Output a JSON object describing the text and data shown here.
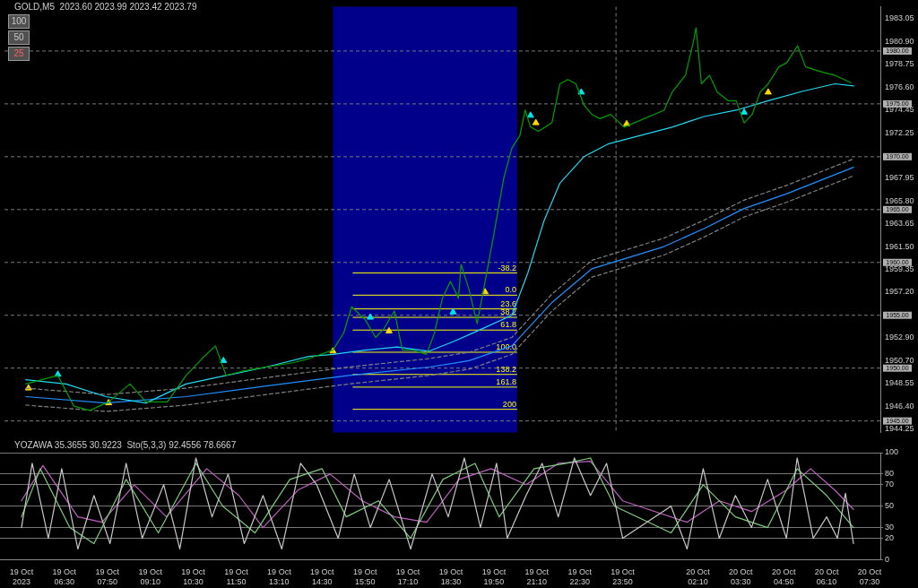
{
  "chart_data": [
    {
      "type": "line",
      "title": "GOLD,M5  2023.60 2023.99 2023.42 2023.79",
      "xlim": [
        "2023-10-19T04:30",
        "2023-10-20T07:50"
      ],
      "ylim": [
        1943.9,
        1984.2
      ],
      "annotations": [
        "100",
        "50",
        "25",
        {
          "text": "-38.2",
          "x": "2023-10-19T20:30",
          "y": 1959.0
        },
        {
          "text": "0.0",
          "x": "2023-10-19T20:30",
          "y": 1956.9
        },
        {
          "text": "23.6",
          "x": "2023-10-19T20:30",
          "y": 1955.6
        },
        {
          "text": "38.2",
          "x": "2023-10-19T20:30",
          "y": 1954.8
        },
        {
          "text": "61.8",
          "x": "2023-10-19T20:30",
          "y": 1953.6
        },
        {
          "text": "100.0",
          "x": "2023-10-19T20:30",
          "y": 1951.5
        },
        {
          "text": "138.2",
          "x": "2023-10-19T20:30",
          "y": 1949.4
        },
        {
          "text": "161.8",
          "x": "2023-10-19T20:30",
          "y": 1948.2
        },
        {
          "text": "200",
          "x": "2023-10-19T20:30",
          "y": 1946.1
        }
      ],
      "yticks": [
        {
          "value": 1944.25,
          "label": "1944.25"
        },
        {
          "value": 1946.4,
          "label": "1946.40"
        },
        {
          "value": 1948.55,
          "label": "1948.55"
        },
        {
          "value": 1950.7,
          "label": "1950.70"
        },
        {
          "value": 1952.9,
          "label": "1952.90"
        },
        {
          "value": 1957.2,
          "label": "1957.20"
        },
        {
          "value": 1959.35,
          "label": "1959.35"
        },
        {
          "value": 1961.5,
          "label": "1961.50"
        },
        {
          "value": 1963.65,
          "label": "1963.65"
        },
        {
          "value": 1965.8,
          "label": "1965.80"
        },
        {
          "value": 1967.95,
          "label": "1967.95"
        },
        {
          "value": 1972.25,
          "label": "1972.25"
        },
        {
          "value": 1974.45,
          "label": "1974.45"
        },
        {
          "value": 1976.6,
          "label": "1976.60"
        },
        {
          "value": 1978.75,
          "label": "1978.75"
        },
        {
          "value": 1980.9,
          "label": "1980.90"
        },
        {
          "value": 1983.05,
          "label": "1983.05"
        }
      ],
      "tick_labels": "y",
      "marker": "none",
      "line_style": "solid",
      "bands": [
        {
          "axis": "x",
          "from": "2023-10-19T14:45",
          "to": "2023-10-19T20:30",
          "color": "#00008b"
        }
      ],
      "ref_lines": [
        {
          "axis": "y",
          "value": 1945,
          "label": "1945.00",
          "line_style": "dashed"
        },
        {
          "axis": "y",
          "value": 1950,
          "label": "1950.00",
          "line_style": "dashed"
        },
        {
          "axis": "y",
          "value": 1955,
          "label": "1955.00",
          "line_style": "dashed"
        },
        {
          "axis": "y",
          "value": 1960,
          "label": "1960.00",
          "line_style": "dashed"
        },
        {
          "axis": "y",
          "value": 1965,
          "label": "1965.00",
          "line_style": "dashed"
        },
        {
          "axis": "y",
          "value": 1970,
          "label": "1970.00",
          "line_style": "dashed"
        },
        {
          "axis": "y",
          "value": 1975,
          "label": "1975.00",
          "line_style": "dashed"
        },
        {
          "axis": "y",
          "value": 1980,
          "label": "1980.00",
          "line_style": "dashed"
        },
        {
          "axis": "x",
          "value": "2023-10-19T23:35",
          "line_style": "dashed"
        },
        {
          "axis": "y",
          "value": 1959.0,
          "color": "#ffff00"
        },
        {
          "axis": "y",
          "value": 1956.9,
          "color": "#ffff00"
        },
        {
          "axis": "y",
          "value": 1955.6,
          "color": "#ffff00"
        },
        {
          "axis": "y",
          "value": 1954.8,
          "color": "#ffff00"
        },
        {
          "axis": "y",
          "value": 1953.6,
          "color": "#ffff00"
        },
        {
          "axis": "y",
          "value": 1951.5,
          "color": "#ffff00"
        },
        {
          "axis": "y",
          "value": 1949.4,
          "color": "#ffff00"
        },
        {
          "axis": "y",
          "value": 1948.2,
          "color": "#ffff00"
        },
        {
          "axis": "y",
          "value": 1946.1,
          "color": "#ffff00"
        }
      ],
      "series": [
        {
          "color": "#00a000",
          "x": [
            "2023-10-19T05:10",
            "2023-10-19T06:10",
            "2023-10-19T06:40",
            "2023-10-19T07:10",
            "2023-10-19T07:45",
            "2023-10-19T08:25",
            "2023-10-19T08:55",
            "2023-10-19T09:35",
            "2023-10-19T10:10",
            "2023-10-19T10:40",
            "2023-10-19T11:05",
            "2023-10-19T11:25",
            "2023-10-19T11:55",
            "2023-10-19T12:40",
            "2023-10-19T13:30",
            "2023-10-19T14:00",
            "2023-10-19T14:45",
            "2023-10-19T15:05",
            "2023-10-19T15:20",
            "2023-10-19T15:45",
            "2023-10-19T16:05",
            "2023-10-19T16:20",
            "2023-10-19T16:40",
            "2023-10-19T16:55",
            "2023-10-19T17:15",
            "2023-10-19T17:40",
            "2023-10-19T17:55",
            "2023-10-19T18:10",
            "2023-10-19T18:25",
            "2023-10-19T18:40",
            "2023-10-19T18:45",
            "2023-10-19T19:00",
            "2023-10-19T19:15",
            "2023-10-19T19:30",
            "2023-10-19T19:45",
            "2023-10-19T20:05",
            "2023-10-19T20:20",
            "2023-10-19T20:35",
            "2023-10-19T20:45",
            "2023-10-19T20:55",
            "2023-10-19T21:10",
            "2023-10-19T21:35",
            "2023-10-19T21:50",
            "2023-10-19T22:05",
            "2023-10-19T22:20",
            "2023-10-19T22:35",
            "2023-10-19T22:50",
            "2023-10-19T23:05",
            "2023-10-19T23:25",
            "2023-10-19T23:50",
            "2023-10-20T01:05",
            "2023-10-20T01:20",
            "2023-10-20T01:45",
            "2023-10-20T02:00",
            "2023-10-20T02:05",
            "2023-10-20T02:15",
            "2023-10-20T02:30",
            "2023-10-20T02:45",
            "2023-10-20T03:05",
            "2023-10-20T03:20",
            "2023-10-20T03:35",
            "2023-10-20T03:50",
            "2023-10-20T04:05",
            "2023-10-20T04:20",
            "2023-10-20T04:40",
            "2023-10-20T04:55",
            "2023-10-20T05:15",
            "2023-10-20T05:30",
            "2023-10-20T05:55",
            "2023-10-20T06:25",
            "2023-10-20T06:55"
          ],
          "values": [
            1948.5,
            1949.3,
            1946.4,
            1946.0,
            1946.8,
            1948.5,
            1946.8,
            1946.8,
            1949.3,
            1950.9,
            1952.1,
            1949.3,
            1949.7,
            1950.1,
            1950.5,
            1950.9,
            1951.7,
            1953.3,
            1955.8,
            1954.6,
            1952.9,
            1953.7,
            1955.4,
            1951.7,
            1951.7,
            1951.3,
            1953.3,
            1956.6,
            1958.2,
            1956.6,
            1959.8,
            1957.4,
            1954.2,
            1958.2,
            1962.3,
            1968.0,
            1970.8,
            1972.0,
            1974.4,
            1972.8,
            1972.4,
            1973.2,
            1976.9,
            1977.3,
            1976.9,
            1974.9,
            1974.0,
            1973.6,
            1974.0,
            1972.8,
            1974.4,
            1976.1,
            1977.7,
            1980.9,
            1982.2,
            1976.9,
            1977.7,
            1976.1,
            1975.3,
            1975.3,
            1973.2,
            1974.0,
            1976.1,
            1976.9,
            1978.5,
            1978.9,
            1980.5,
            1978.5,
            1978.1,
            1977.7,
            1977.0
          ]
        },
        {
          "color": "#20d8f0",
          "x": [
            "2023-10-19T05:10",
            "2023-10-19T06:25",
            "2023-10-19T07:40",
            "2023-10-19T08:55",
            "2023-10-19T10:10",
            "2023-10-19T11:25",
            "2023-10-19T12:40",
            "2023-10-19T14:00",
            "2023-10-19T14:45",
            "2023-10-19T15:45",
            "2023-10-19T16:45",
            "2023-10-19T17:45",
            "2023-10-19T18:30",
            "2023-10-19T19:15",
            "2023-10-19T20:20",
            "2023-10-19T20:50",
            "2023-10-19T21:20",
            "2023-10-19T21:50",
            "2023-10-19T22:35",
            "2023-10-19T23:20",
            "2023-10-20T01:20",
            "2023-10-20T02:20",
            "2023-10-20T03:20",
            "2023-10-20T04:20",
            "2023-10-20T05:25",
            "2023-10-20T06:25",
            "2023-10-20T07:00"
          ],
          "values": [
            1948.9,
            1948.5,
            1947.3,
            1946.7,
            1948.5,
            1949.3,
            1950.1,
            1951.1,
            1951.3,
            1951.7,
            1952.0,
            1951.6,
            1952.5,
            1953.5,
            1955.0,
            1959.0,
            1963.9,
            1967.5,
            1970.0,
            1971.2,
            1972.8,
            1973.8,
            1974.4,
            1975.3,
            1976.2,
            1976.9,
            1976.7
          ]
        },
        {
          "color": "#1e90ff",
          "x": [
            "2023-10-19T05:10",
            "2023-10-19T07:40",
            "2023-10-19T10:10",
            "2023-10-19T12:40",
            "2023-10-19T15:15",
            "2023-10-19T17:45",
            "2023-10-19T19:00",
            "2023-10-19T20:20",
            "2023-10-19T21:35",
            "2023-10-19T22:50",
            "2023-10-20T01:05",
            "2023-10-20T02:20",
            "2023-10-20T03:35",
            "2023-10-20T04:55",
            "2023-10-20T06:10",
            "2023-10-20T07:00"
          ],
          "values": [
            1947.3,
            1946.7,
            1947.3,
            1948.3,
            1949.3,
            1950.1,
            1950.7,
            1952.1,
            1956.2,
            1959.4,
            1961.5,
            1963.2,
            1965.1,
            1966.5,
            1968.0,
            1969.0
          ]
        },
        {
          "color": "#808080",
          "line_style": "dashed",
          "x": [
            "2023-10-19T05:10",
            "2023-10-19T07:40",
            "2023-10-19T10:10",
            "2023-10-19T12:40",
            "2023-10-19T15:15",
            "2023-10-19T17:45",
            "2023-10-19T19:00",
            "2023-10-19T20:20",
            "2023-10-19T21:35",
            "2023-10-19T22:50",
            "2023-10-20T01:05",
            "2023-10-20T02:20",
            "2023-10-20T03:35",
            "2023-10-20T04:55",
            "2023-10-20T06:10",
            "2023-10-20T07:00"
          ],
          "values": [
            1948.1,
            1947.5,
            1948.1,
            1949.1,
            1950.1,
            1950.9,
            1951.5,
            1952.9,
            1957.0,
            1960.2,
            1962.3,
            1964.0,
            1965.9,
            1967.3,
            1968.8,
            1969.8
          ]
        },
        {
          "color": "#808080",
          "line_style": "dashed",
          "x": [
            "2023-10-19T05:10",
            "2023-10-19T07:40",
            "2023-10-19T10:10",
            "2023-10-19T12:40",
            "2023-10-19T15:15",
            "2023-10-19T17:45",
            "2023-10-19T19:00",
            "2023-10-19T20:20",
            "2023-10-19T21:35",
            "2023-10-19T22:50",
            "2023-10-20T01:05",
            "2023-10-20T02:20",
            "2023-10-20T03:35",
            "2023-10-20T04:55",
            "2023-10-20T06:10",
            "2023-10-20T07:00"
          ],
          "values": [
            1946.5,
            1945.9,
            1946.5,
            1947.5,
            1948.5,
            1949.3,
            1949.9,
            1951.3,
            1955.4,
            1958.6,
            1960.7,
            1962.4,
            1964.3,
            1965.7,
            1967.2,
            1968.2
          ]
        },
        {
          "type": "scatter",
          "marker": "triangle",
          "color": "#ffd700",
          "x": [
            "2023-10-19T05:15",
            "2023-10-19T07:45",
            "2023-10-19T14:45",
            "2023-10-19T16:30",
            "2023-10-19T19:30",
            "2023-10-19T21:05",
            "2023-10-19T23:55",
            "2023-10-20T04:20"
          ],
          "values": [
            1948.1,
            1946.7,
            1951.6,
            1953.5,
            1957.2,
            1973.2,
            1973.1,
            1976.1
          ]
        },
        {
          "type": "scatter",
          "marker": "triangle",
          "color": "#00e5ee",
          "x": [
            "2023-10-19T06:10",
            "2023-10-19T11:20",
            "2023-10-19T15:55",
            "2023-10-19T18:30",
            "2023-10-19T20:55",
            "2023-10-19T22:30",
            "2023-10-20T03:35"
          ],
          "values": [
            1949.4,
            1950.7,
            1954.8,
            1955.3,
            1973.9,
            1976.1,
            1974.2
          ]
        }
      ]
    },
    {
      "type": "line",
      "title": "YOZAWA 35.3655 30.9223  Sto(5,3,3) 92.4556 78.6667",
      "xlim": [
        "2023-10-19T04:30",
        "2023-10-20T07:50"
      ],
      "ylim": [
        0,
        100
      ],
      "yticks": [
        0,
        20,
        30,
        50,
        70,
        80,
        100
      ],
      "grid": "y",
      "marker": "none",
      "xticks": [
        {
          "value": "2023-10-19T05:10",
          "label": "19 Oct 2023"
        },
        {
          "value": "2023-10-19T06:30",
          "label": "19 Oct 06:30"
        },
        {
          "value": "2023-10-19T07:50",
          "label": "19 Oct 07:50"
        },
        {
          "value": "2023-10-19T09:10",
          "label": "19 Oct 09:10"
        },
        {
          "value": "2023-10-19T10:30",
          "label": "19 Oct 10:30"
        },
        {
          "value": "2023-10-19T11:50",
          "label": "19 Oct 11:50"
        },
        {
          "value": "2023-10-19T13:10",
          "label": "19 Oct 13:10"
        },
        {
          "value": "2023-10-19T14:30",
          "label": "19 Oct 14:30"
        },
        {
          "value": "2023-10-19T15:50",
          "label": "19 Oct 15:50"
        },
        {
          "value": "2023-10-19T17:10",
          "label": "19 Oct 17:10"
        },
        {
          "value": "2023-10-19T18:30",
          "label": "19 Oct 18:30"
        },
        {
          "value": "2023-10-19T19:50",
          "label": "19 Oct 19:50"
        },
        {
          "value": "2023-10-19T21:10",
          "label": "19 Oct 21:10"
        },
        {
          "value": "2023-10-19T22:30",
          "label": "19 Oct 22:30"
        },
        {
          "value": "2023-10-19T23:50",
          "label": "19 Oct 23:50"
        },
        {
          "value": "2023-10-20T02:10",
          "label": "20 Oct 02:10"
        },
        {
          "value": "2023-10-20T03:30",
          "label": "20 Oct 03:30"
        },
        {
          "value": "2023-10-20T04:50",
          "label": "20 Oct 04:50"
        },
        {
          "value": "2023-10-20T06:10",
          "label": "20 Oct 06:10"
        },
        {
          "value": "2023-10-20T07:30",
          "label": "20 Oct 07:30"
        }
      ],
      "series": [
        {
          "color": "#c8c8c8",
          "x": [
            "2023-10-19T05:10",
            "2023-10-19T05:30",
            "2023-10-19T06:00",
            "2023-10-19T06:25",
            "2023-10-19T06:55",
            "2023-10-19T07:25",
            "2023-10-19T07:55",
            "2023-10-19T08:25",
            "2023-10-19T08:55",
            "2023-10-19T09:35",
            "2023-10-19T10:05",
            "2023-10-19T10:35",
            "2023-10-19T11:05",
            "2023-10-19T11:35",
            "2023-10-19T12:05",
            "2023-10-19T12:40",
            "2023-10-19T13:15",
            "2023-10-19T13:50",
            "2023-10-19T14:20",
            "2023-10-19T15:00",
            "2023-10-19T15:30",
            "2023-10-19T16:00",
            "2023-10-19T16:35",
            "2023-10-19T17:15",
            "2023-10-19T17:55",
            "2023-10-19T18:25",
            "2023-10-19T18:55",
            "2023-10-19T19:25",
            "2023-10-19T19:55",
            "2023-10-19T20:15",
            "2023-10-19T20:50",
            "2023-10-19T21:20",
            "2023-10-19T21:50",
            "2023-10-19T22:20",
            "2023-10-19T22:50",
            "2023-10-19T23:20",
            "2023-10-19T23:50",
            "2023-10-20T01:20",
            "2023-10-20T01:50",
            "2023-10-20T02:20",
            "2023-10-20T02:50",
            "2023-10-20T03:20",
            "2023-10-20T03:50",
            "2023-10-20T04:20",
            "2023-10-20T04:55",
            "2023-10-20T05:15",
            "2023-10-20T05:45",
            "2023-10-20T06:10",
            "2023-10-20T06:30",
            "2023-10-20T06:45",
            "2023-10-20T07:00"
          ],
          "values": [
            30,
            90,
            20,
            85,
            10,
            60,
            15,
            90,
            20,
            70,
            10,
            95,
            40,
            80,
            15,
            60,
            10,
            90,
            70,
            20,
            80,
            30,
            75,
            10,
            80,
            40,
            95,
            30,
            90,
            20,
            60,
            90,
            40,
            95,
            60,
            90,
            20,
            50,
            10,
            85,
            20,
            60,
            30,
            75,
            20,
            95,
            20,
            40,
            20,
            62,
            15
          ]
        },
        {
          "color": "#7ccd7c",
          "x": [
            "2023-10-19T05:10",
            "2023-10-19T05:45",
            "2023-10-19T06:40",
            "2023-10-19T07:25",
            "2023-10-19T08:25",
            "2023-10-19T09:25",
            "2023-10-19T10:35",
            "2023-10-19T11:25",
            "2023-10-19T12:25",
            "2023-10-19T13:30",
            "2023-10-19T14:30",
            "2023-10-19T15:15",
            "2023-10-19T16:15",
            "2023-10-19T17:15",
            "2023-10-19T18:15",
            "2023-10-19T19:15",
            "2023-10-19T20:00",
            "2023-10-19T21:05",
            "2023-10-19T22:05",
            "2023-10-19T22:50",
            "2023-10-19T23:35",
            "2023-10-20T01:20",
            "2023-10-20T02:20",
            "2023-10-20T03:20",
            "2023-10-20T04:20",
            "2023-10-20T05:15",
            "2023-10-20T06:10",
            "2023-10-20T07:00"
          ],
          "values": [
            40,
            85,
            30,
            15,
            75,
            25,
            90,
            50,
            25,
            75,
            85,
            40,
            55,
            20,
            75,
            90,
            40,
            85,
            90,
            95,
            50,
            25,
            70,
            40,
            30,
            85,
            60,
            30
          ]
        },
        {
          "color": "#c060c0",
          "x": [
            "2023-10-19T05:10",
            "2023-10-19T05:50",
            "2023-10-19T06:55",
            "2023-10-19T07:40",
            "2023-10-19T08:40",
            "2023-10-19T09:40",
            "2023-10-19T10:55",
            "2023-10-19T11:55",
            "2023-10-19T12:40",
            "2023-10-19T13:45",
            "2023-10-19T14:45",
            "2023-10-19T15:45",
            "2023-10-19T16:45",
            "2023-10-19T17:45",
            "2023-10-19T18:45",
            "2023-10-19T19:45",
            "2023-10-19T20:50",
            "2023-10-19T21:50",
            "2023-10-19T22:50",
            "2023-10-19T23:50",
            "2023-10-20T01:50",
            "2023-10-20T02:50",
            "2023-10-20T03:50",
            "2023-10-20T04:55",
            "2023-10-20T05:40",
            "2023-10-20T06:25",
            "2023-10-20T07:00"
          ],
          "values": [
            55,
            88,
            40,
            35,
            70,
            40,
            85,
            60,
            30,
            65,
            80,
            55,
            40,
            35,
            75,
            85,
            70,
            90,
            92,
            55,
            35,
            55,
            45,
            65,
            85,
            65,
            47
          ]
        }
      ]
    }
  ]
}
